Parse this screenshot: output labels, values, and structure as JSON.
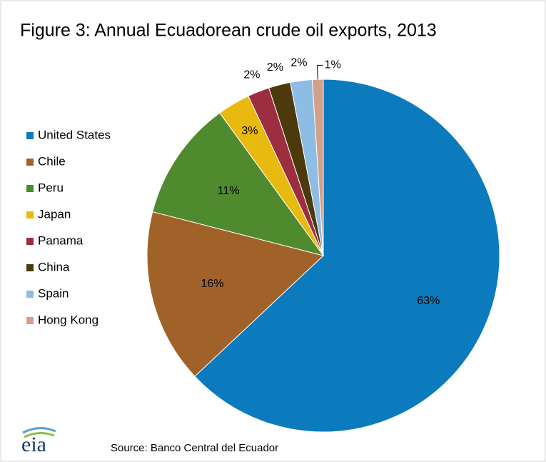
{
  "chart_data": {
    "type": "pie",
    "title": "Figure 3:  Annual Ecuadorean crude oil exports, 2013",
    "categories": [
      "United States",
      "Chile",
      "Peru",
      "Japan",
      "Panama",
      "China",
      "Spain",
      "Hong Kong"
    ],
    "values": [
      63,
      16,
      11,
      3,
      2,
      2,
      2,
      1
    ],
    "value_labels": [
      "63%",
      "16%",
      "11%",
      "3%",
      "2%",
      "2%",
      "2%",
      "1%"
    ],
    "colors": [
      "#0b7bbd",
      "#a1622a",
      "#4f8a2f",
      "#e8b90e",
      "#9c2e40",
      "#4d3a0c",
      "#8dbde5",
      "#d4a08c"
    ],
    "legend": "left",
    "source": "Source:  Banco Central del Ecuador",
    "logo": "eia"
  }
}
